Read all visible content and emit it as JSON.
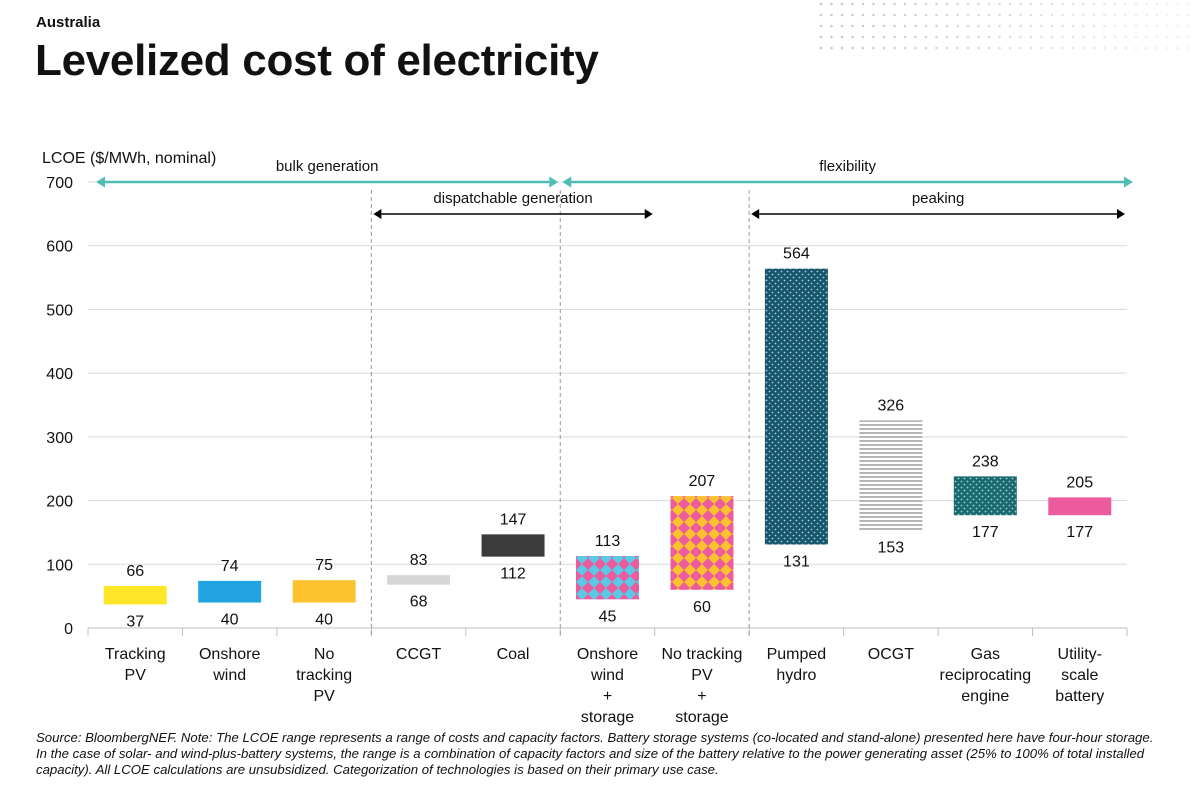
{
  "header": {
    "kicker": "Australia",
    "title": "Levelized cost of electricity"
  },
  "footer": {
    "source": "Source: BloombergNEF. Note: The LCOE range represents a range of costs and capacity factors. Battery storage systems (co-located and stand-alone) presented here have four-hour storage. In the case of solar- and wind-plus-battery systems, the range is a combination of capacity factors and size of the battery relative to the power generating asset (25% to 100% of total installed capacity). All LCOE calculations are unsubsidized. Categorization of technologies is based on their primary use case."
  },
  "chart_data": {
    "type": "bar",
    "subtype": "floating-range",
    "ylabel": "LCOE ($/MWh, nominal)",
    "ylim": [
      0,
      700
    ],
    "yticks": [
      0,
      100,
      200,
      300,
      400,
      500,
      600,
      700
    ],
    "grid": true,
    "categories": [
      [
        "Tracking",
        "PV"
      ],
      [
        "Onshore",
        "wind"
      ],
      [
        "No",
        "tracking",
        "PV"
      ],
      [
        "CCGT"
      ],
      [
        "Coal"
      ],
      [
        "Onshore",
        "wind",
        "+",
        "storage"
      ],
      [
        "No tracking",
        "PV",
        "+",
        "storage"
      ],
      [
        "Pumped",
        "hydro"
      ],
      [
        "OCGT"
      ],
      [
        "Gas",
        "reciprocating",
        "engine"
      ],
      [
        "Utility-",
        "scale",
        "battery"
      ]
    ],
    "ranges": [
      {
        "low": 37,
        "high": 66,
        "color": "#ffe629",
        "pattern": "solid"
      },
      {
        "low": 40,
        "high": 74,
        "color": "#20a3de",
        "pattern": "solid"
      },
      {
        "low": 40,
        "high": 75,
        "color": "#fcc22d",
        "pattern": "solid"
      },
      {
        "low": 68,
        "high": 83,
        "color": "#d6d6d6",
        "pattern": "solid"
      },
      {
        "low": 112,
        "high": 147,
        "color": "#3b3b3b",
        "pattern": "solid"
      },
      {
        "low": 45,
        "high": 113,
        "color": "#5bc8e6",
        "pattern": "diamond-pink"
      },
      {
        "low": 60,
        "high": 207,
        "color": "#fcc22d",
        "pattern": "diamond-pink"
      },
      {
        "low": 131,
        "high": 564,
        "color": "#17566b",
        "pattern": "dots-light"
      },
      {
        "low": 153,
        "high": 326,
        "color": "#ffffff",
        "pattern": "grey-lines"
      },
      {
        "low": 177,
        "high": 238,
        "color": "#196a6f",
        "pattern": "dots-teal"
      },
      {
        "low": 177,
        "high": 205,
        "color": "#ec5b9e",
        "pattern": "solid"
      }
    ],
    "groups": [
      {
        "label": "bulk generation",
        "from_category": 0,
        "to_category": 5,
        "color": "#4fbdb4"
      },
      {
        "label": "flexibility",
        "from_category": 5,
        "to_category": 10,
        "color": "#4fbdb4"
      },
      {
        "label": "dispatchable generation",
        "from_category": 3,
        "to_category": 6,
        "color": "#000000"
      },
      {
        "label": "peaking",
        "from_category": 7,
        "to_category": 10,
        "color": "#000000"
      }
    ],
    "separators_after_category": [
      2,
      4,
      6
    ]
  }
}
